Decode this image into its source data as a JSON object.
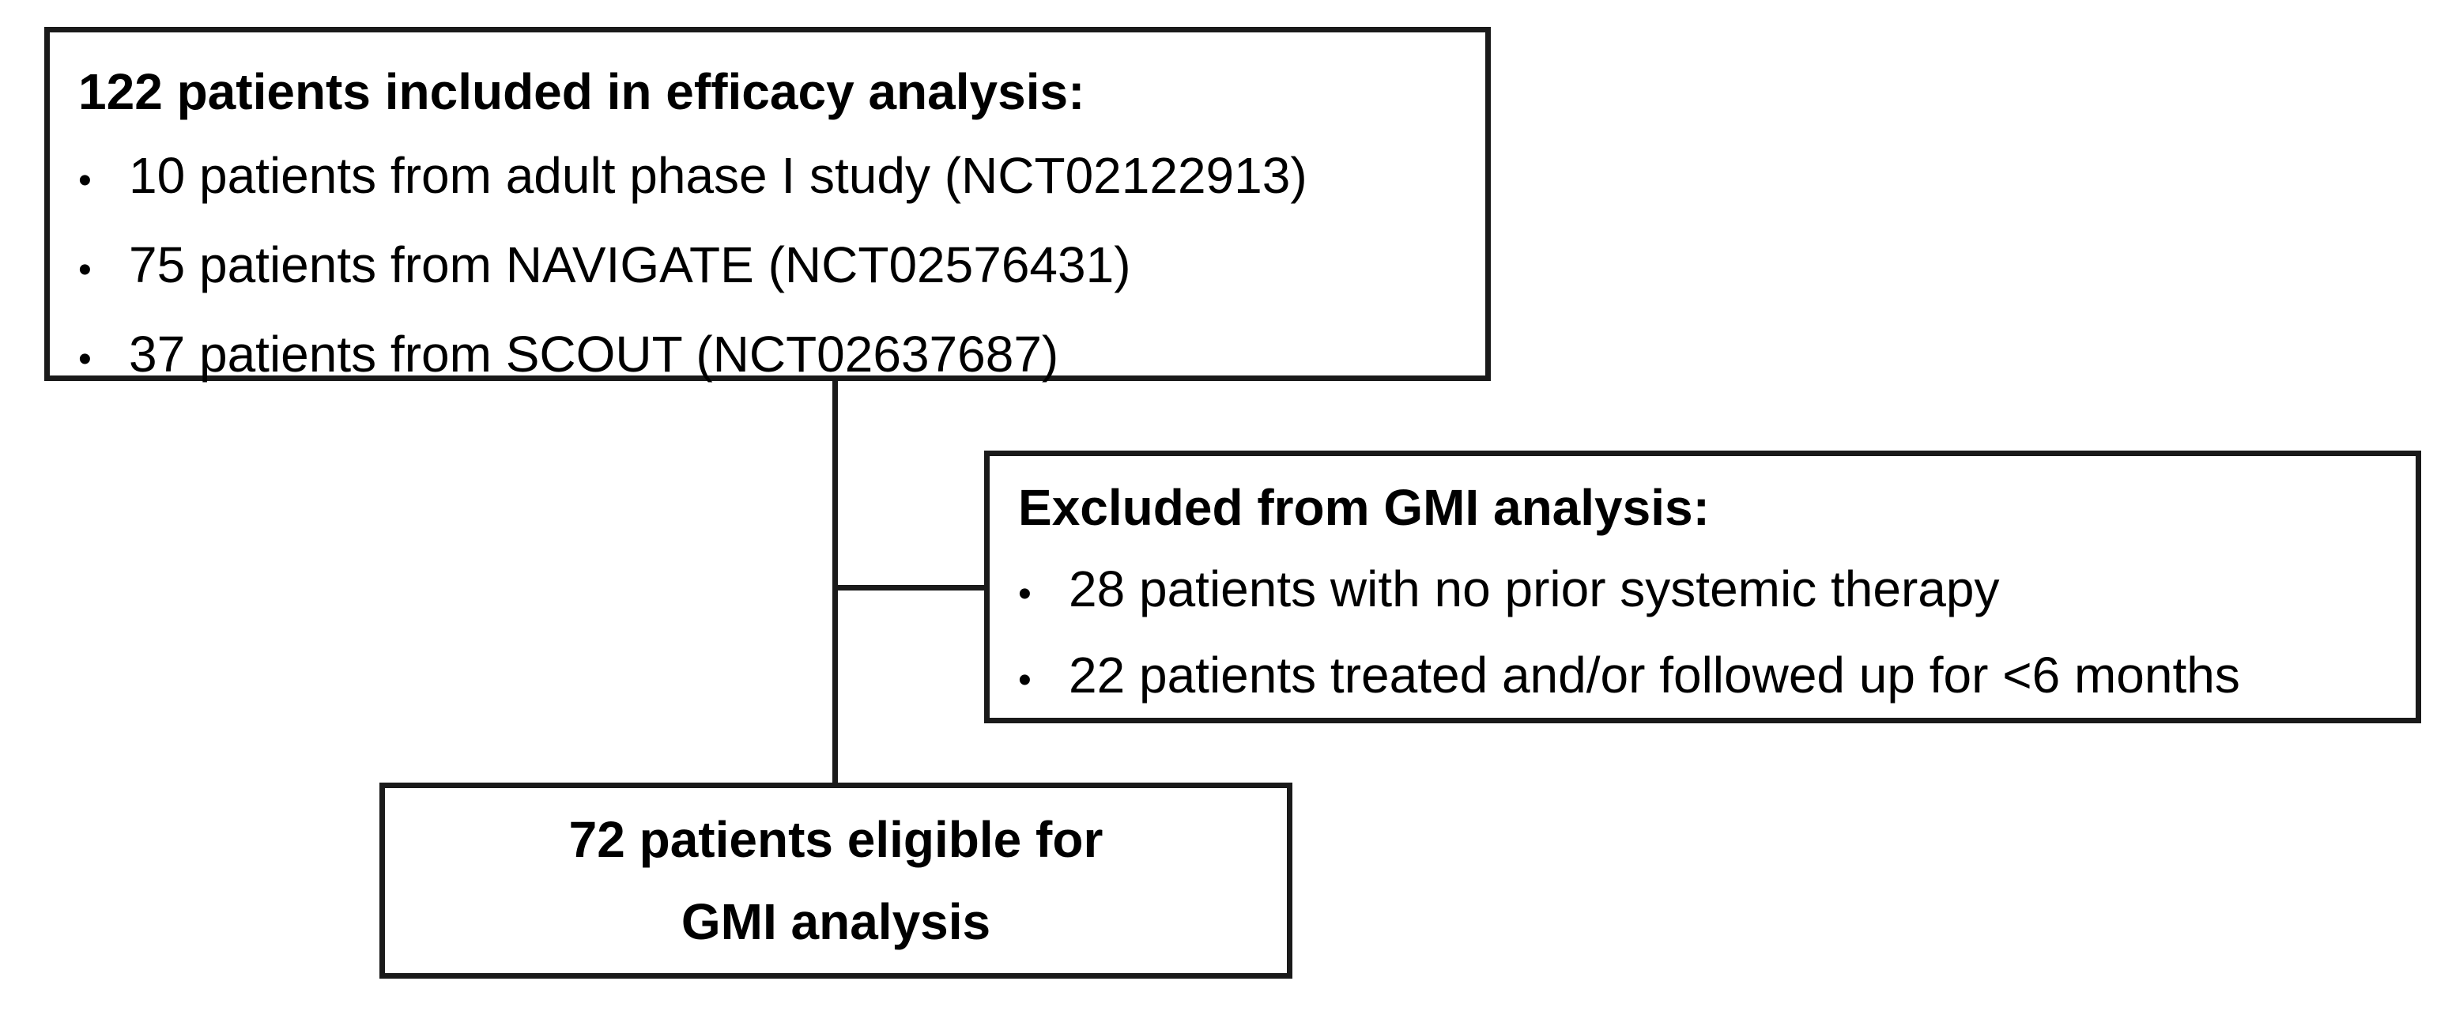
{
  "figure": {
    "type": "patient-flow-diagram",
    "colors": {
      "background": "#ffffff",
      "border": "#1a1a1a",
      "text": "#000000",
      "connector": "#1a1a1a"
    },
    "bullet_glyph": "•",
    "boxes": {
      "efficacy": {
        "title": "122 patients included in efficacy analysis:",
        "bullets": [
          "10 patients from adult phase I study (NCT02122913)",
          "75 patients from NAVIGATE (NCT02576431)",
          "37 patients from SCOUT (NCT02637687)"
        ]
      },
      "excluded": {
        "title": "Excluded from GMI analysis:",
        "bullets": [
          "28 patients with no prior systemic therapy",
          "22 patients treated and/or followed up for <6 months"
        ]
      },
      "eligible": {
        "lines": [
          "72 patients eligible for",
          "GMI analysis"
        ]
      }
    }
  }
}
